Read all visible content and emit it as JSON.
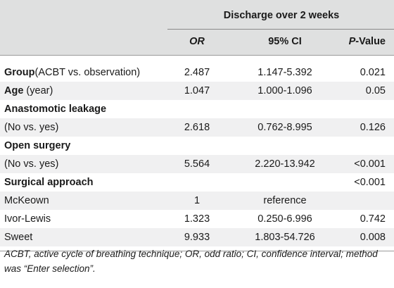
{
  "table": {
    "group_header": "Discharge over 2 weeks",
    "columns": [
      "OR",
      "95% CI",
      "P-Value"
    ],
    "pvalue_prefix": "P",
    "pvalue_suffix": "-Value",
    "rows": [
      {
        "label_bold": "Group",
        "label_rest": "(ACBT vs. observation)",
        "or": "2.487",
        "ci": "1.147-5.392",
        "p": "0.021"
      },
      {
        "label_bold": "Age",
        "label_rest": " (year)",
        "or": "1.047",
        "ci": "1.000-1.096",
        "p": "0.05"
      },
      {
        "label_bold": "Anastomotic leakage",
        "label_rest": "",
        "or": "",
        "ci": "",
        "p": ""
      },
      {
        "label_bold": "",
        "label_rest": "(No vs. yes)",
        "or": "2.618",
        "ci": "0.762-8.995",
        "p": "0.126"
      },
      {
        "label_bold": "Open surgery",
        "label_rest": "",
        "or": "",
        "ci": "",
        "p": ""
      },
      {
        "label_bold": "",
        "label_rest": "(No vs. yes)",
        "or": "5.564",
        "ci": "2.220-13.942",
        "p": "<0.001"
      },
      {
        "label_bold": "Surgical approach",
        "label_rest": "",
        "or": "",
        "ci": "",
        "p": "<0.001"
      },
      {
        "label_bold": "",
        "label_rest": "McKeown",
        "or": "1",
        "ci": "reference",
        "p": ""
      },
      {
        "label_bold": "",
        "label_rest": "Ivor-Lewis",
        "or": "1.323",
        "ci": "0.250-6.996",
        "p": "0.742"
      },
      {
        "label_bold": "",
        "label_rest": "Sweet",
        "or": "9.933",
        "ci": "1.803-54.726",
        "p": "0.008"
      }
    ]
  },
  "footnote": "ACBT, active cycle of breathing technique; OR, odd ratio; CI, confidence interval; method was “Enter selection”."
}
